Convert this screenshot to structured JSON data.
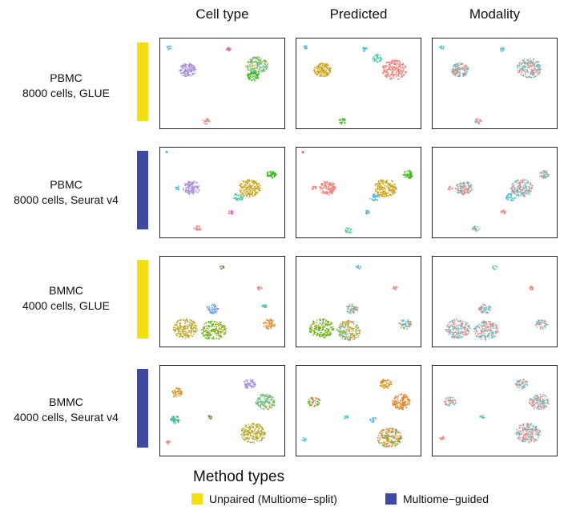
{
  "columns": [
    "Cell type",
    "Predicted",
    "Modality"
  ],
  "rows": [
    {
      "line1": "PBMC",
      "line2": "8000 cells, GLUE",
      "method": "unpaired"
    },
    {
      "line1": "PBMC",
      "line2": "8000 cells, Seurat v4",
      "method": "guided"
    },
    {
      "line1": "BMMC",
      "line2": "4000 cells, GLUE",
      "method": "unpaired"
    },
    {
      "line1": "BMMC",
      "line2": "4000 cells, Seurat v4",
      "method": "guided"
    }
  ],
  "legend": {
    "title": "Method types",
    "items": [
      {
        "key": "unpaired",
        "label": "Unpaired (Multiome−split)",
        "color": "#f2df0f"
      },
      {
        "key": "guided",
        "label": "Multiome−guided",
        "color": "#3f48a3"
      }
    ]
  },
  "colors": {
    "purple": "#a78fdb",
    "teal": "#4ec9a6",
    "green": "#3fb519",
    "olive": "#b6a82e",
    "gold": "#c9a21a",
    "salmon": "#f1827a",
    "pink": "#e05db0",
    "sky": "#4fb5e0",
    "orange": "#e5862b",
    "cyan": "#5ecbcf",
    "modality_a": "#f0847c",
    "modality_b": "#58c5cc"
  },
  "chart_data": {
    "type": "scatter",
    "description_axes": "UMAP embeddings, no axes shown",
    "panels": [
      {
        "row": 0,
        "col": 0,
        "clusters": [
          {
            "x": 0.22,
            "y": 0.35,
            "r": 0.07,
            "n": 140,
            "colors": [
              "purple"
            ]
          },
          {
            "x": 0.78,
            "y": 0.3,
            "r": 0.09,
            "n": 170,
            "colors": [
              "teal",
              "olive"
            ]
          },
          {
            "x": 0.75,
            "y": 0.42,
            "r": 0.05,
            "n": 60,
            "colors": [
              "green"
            ]
          },
          {
            "x": 0.07,
            "y": 0.1,
            "r": 0.02,
            "n": 12,
            "colors": [
              "sky"
            ]
          },
          {
            "x": 0.55,
            "y": 0.12,
            "r": 0.02,
            "n": 14,
            "colors": [
              "pink"
            ]
          },
          {
            "x": 0.37,
            "y": 0.92,
            "r": 0.03,
            "n": 20,
            "colors": [
              "salmon"
            ]
          }
        ]
      },
      {
        "row": 0,
        "col": 1,
        "clusters": [
          {
            "x": 0.21,
            "y": 0.35,
            "r": 0.07,
            "n": 140,
            "colors": [
              "gold"
            ]
          },
          {
            "x": 0.79,
            "y": 0.35,
            "r": 0.1,
            "n": 200,
            "colors": [
              "salmon"
            ]
          },
          {
            "x": 0.65,
            "y": 0.22,
            "r": 0.04,
            "n": 40,
            "colors": [
              "teal"
            ]
          },
          {
            "x": 0.07,
            "y": 0.1,
            "r": 0.02,
            "n": 12,
            "colors": [
              "sky"
            ]
          },
          {
            "x": 0.55,
            "y": 0.12,
            "r": 0.02,
            "n": 14,
            "colors": [
              "sky"
            ]
          },
          {
            "x": 0.37,
            "y": 0.92,
            "r": 0.03,
            "n": 20,
            "colors": [
              "green"
            ]
          }
        ]
      },
      {
        "row": 0,
        "col": 2,
        "clusters": [
          {
            "x": 0.22,
            "y": 0.35,
            "r": 0.07,
            "n": 140,
            "colors": [
              "modality_a",
              "modality_b"
            ]
          },
          {
            "x": 0.78,
            "y": 0.33,
            "r": 0.1,
            "n": 200,
            "colors": [
              "modality_a",
              "modality_b"
            ]
          },
          {
            "x": 0.07,
            "y": 0.1,
            "r": 0.02,
            "n": 12,
            "colors": [
              "modality_b"
            ]
          },
          {
            "x": 0.56,
            "y": 0.12,
            "r": 0.02,
            "n": 14,
            "colors": [
              "modality_b"
            ]
          },
          {
            "x": 0.37,
            "y": 0.92,
            "r": 0.03,
            "n": 20,
            "colors": [
              "modality_b",
              "modality_a"
            ]
          }
        ]
      },
      {
        "row": 1,
        "col": 0,
        "clusters": [
          {
            "x": 0.25,
            "y": 0.45,
            "r": 0.07,
            "n": 120,
            "colors": [
              "purple"
            ]
          },
          {
            "x": 0.72,
            "y": 0.45,
            "r": 0.09,
            "n": 170,
            "colors": [
              "gold"
            ]
          },
          {
            "x": 0.9,
            "y": 0.3,
            "r": 0.04,
            "n": 50,
            "colors": [
              "green"
            ]
          },
          {
            "x": 0.63,
            "y": 0.55,
            "r": 0.04,
            "n": 40,
            "colors": [
              "teal"
            ]
          },
          {
            "x": 0.14,
            "y": 0.45,
            "r": 0.02,
            "n": 12,
            "colors": [
              "sky"
            ]
          },
          {
            "x": 0.57,
            "y": 0.72,
            "r": 0.02,
            "n": 14,
            "colors": [
              "pink"
            ]
          },
          {
            "x": 0.3,
            "y": 0.9,
            "r": 0.03,
            "n": 20,
            "colors": [
              "salmon"
            ]
          },
          {
            "x": 0.05,
            "y": 0.05,
            "r": 0.01,
            "n": 6,
            "colors": [
              "sky"
            ]
          }
        ]
      },
      {
        "row": 1,
        "col": 1,
        "clusters": [
          {
            "x": 0.25,
            "y": 0.45,
            "r": 0.07,
            "n": 120,
            "colors": [
              "salmon"
            ]
          },
          {
            "x": 0.72,
            "y": 0.45,
            "r": 0.09,
            "n": 170,
            "colors": [
              "gold"
            ]
          },
          {
            "x": 0.9,
            "y": 0.3,
            "r": 0.04,
            "n": 50,
            "colors": [
              "green"
            ]
          },
          {
            "x": 0.63,
            "y": 0.55,
            "r": 0.04,
            "n": 40,
            "colors": [
              "sky"
            ]
          },
          {
            "x": 0.14,
            "y": 0.45,
            "r": 0.02,
            "n": 12,
            "colors": [
              "salmon"
            ]
          },
          {
            "x": 0.57,
            "y": 0.72,
            "r": 0.02,
            "n": 14,
            "colors": [
              "sky"
            ]
          },
          {
            "x": 0.42,
            "y": 0.92,
            "r": 0.03,
            "n": 22,
            "colors": [
              "teal"
            ]
          },
          {
            "x": 0.05,
            "y": 0.05,
            "r": 0.01,
            "n": 6,
            "colors": [
              "pink"
            ]
          }
        ]
      },
      {
        "row": 1,
        "col": 2,
        "clusters": [
          {
            "x": 0.25,
            "y": 0.45,
            "r": 0.07,
            "n": 120,
            "colors": [
              "modality_a",
              "modality_b"
            ]
          },
          {
            "x": 0.72,
            "y": 0.45,
            "r": 0.09,
            "n": 170,
            "colors": [
              "modality_a",
              "modality_b"
            ]
          },
          {
            "x": 0.9,
            "y": 0.3,
            "r": 0.04,
            "n": 50,
            "colors": [
              "modality_b",
              "modality_a"
            ]
          },
          {
            "x": 0.63,
            "y": 0.55,
            "r": 0.04,
            "n": 40,
            "colors": [
              "modality_b"
            ]
          },
          {
            "x": 0.14,
            "y": 0.45,
            "r": 0.02,
            "n": 12,
            "colors": [
              "modality_a"
            ]
          },
          {
            "x": 0.57,
            "y": 0.72,
            "r": 0.02,
            "n": 14,
            "colors": [
              "modality_a"
            ]
          },
          {
            "x": 0.35,
            "y": 0.9,
            "r": 0.03,
            "n": 20,
            "colors": [
              "modality_a",
              "modality_b"
            ]
          }
        ]
      },
      {
        "row": 2,
        "col": 0,
        "clusters": [
          {
            "x": 0.2,
            "y": 0.8,
            "r": 0.1,
            "n": 180,
            "colors": [
              "olive",
              "gold"
            ]
          },
          {
            "x": 0.43,
            "y": 0.82,
            "r": 0.1,
            "n": 180,
            "colors": [
              "olive",
              "green"
            ]
          },
          {
            "x": 0.42,
            "y": 0.58,
            "r": 0.05,
            "n": 60,
            "colors": [
              "purple",
              "sky"
            ]
          },
          {
            "x": 0.88,
            "y": 0.75,
            "r": 0.05,
            "n": 50,
            "colors": [
              "orange"
            ]
          },
          {
            "x": 0.5,
            "y": 0.12,
            "r": 0.02,
            "n": 12,
            "colors": [
              "green",
              "pink"
            ]
          },
          {
            "x": 0.8,
            "y": 0.35,
            "r": 0.02,
            "n": 14,
            "colors": [
              "salmon"
            ]
          },
          {
            "x": 0.84,
            "y": 0.55,
            "r": 0.02,
            "n": 14,
            "colors": [
              "teal"
            ]
          }
        ]
      },
      {
        "row": 2,
        "col": 1,
        "clusters": [
          {
            "x": 0.2,
            "y": 0.8,
            "r": 0.1,
            "n": 180,
            "colors": [
              "olive",
              "green"
            ]
          },
          {
            "x": 0.42,
            "y": 0.82,
            "r": 0.1,
            "n": 180,
            "colors": [
              "olive",
              "orange",
              "teal"
            ]
          },
          {
            "x": 0.45,
            "y": 0.58,
            "r": 0.05,
            "n": 60,
            "colors": [
              "salmon",
              "teal"
            ]
          },
          {
            "x": 0.88,
            "y": 0.75,
            "r": 0.05,
            "n": 50,
            "colors": [
              "orange",
              "sky"
            ]
          },
          {
            "x": 0.5,
            "y": 0.12,
            "r": 0.02,
            "n": 12,
            "colors": [
              "sky"
            ]
          },
          {
            "x": 0.8,
            "y": 0.35,
            "r": 0.02,
            "n": 14,
            "colors": [
              "salmon"
            ]
          }
        ]
      },
      {
        "row": 2,
        "col": 2,
        "clusters": [
          {
            "x": 0.2,
            "y": 0.8,
            "r": 0.1,
            "n": 180,
            "colors": [
              "modality_a",
              "modality_b"
            ]
          },
          {
            "x": 0.43,
            "y": 0.82,
            "r": 0.1,
            "n": 180,
            "colors": [
              "modality_a",
              "modality_b"
            ]
          },
          {
            "x": 0.42,
            "y": 0.58,
            "r": 0.05,
            "n": 60,
            "colors": [
              "modality_b",
              "modality_a"
            ]
          },
          {
            "x": 0.88,
            "y": 0.75,
            "r": 0.05,
            "n": 50,
            "colors": [
              "modality_b",
              "modality_a"
            ]
          },
          {
            "x": 0.5,
            "y": 0.12,
            "r": 0.02,
            "n": 12,
            "colors": [
              "modality_b"
            ]
          },
          {
            "x": 0.8,
            "y": 0.35,
            "r": 0.02,
            "n": 14,
            "colors": [
              "modality_a"
            ]
          }
        ]
      },
      {
        "row": 3,
        "col": 0,
        "clusters": [
          {
            "x": 0.75,
            "y": 0.75,
            "r": 0.1,
            "n": 200,
            "colors": [
              "olive"
            ]
          },
          {
            "x": 0.85,
            "y": 0.4,
            "r": 0.08,
            "n": 140,
            "colors": [
              "olive",
              "teal"
            ]
          },
          {
            "x": 0.72,
            "y": 0.2,
            "r": 0.05,
            "n": 60,
            "colors": [
              "purple"
            ]
          },
          {
            "x": 0.13,
            "y": 0.3,
            "r": 0.05,
            "n": 50,
            "colors": [
              "orange",
              "olive"
            ]
          },
          {
            "x": 0.12,
            "y": 0.6,
            "r": 0.04,
            "n": 40,
            "colors": [
              "green",
              "sky"
            ]
          },
          {
            "x": 0.06,
            "y": 0.85,
            "r": 0.02,
            "n": 15,
            "colors": [
              "salmon"
            ]
          },
          {
            "x": 0.4,
            "y": 0.57,
            "r": 0.02,
            "n": 14,
            "colors": [
              "green",
              "pink"
            ]
          }
        ]
      },
      {
        "row": 3,
        "col": 1,
        "clusters": [
          {
            "x": 0.75,
            "y": 0.8,
            "r": 0.1,
            "n": 200,
            "colors": [
              "salmon",
              "gold",
              "green"
            ]
          },
          {
            "x": 0.85,
            "y": 0.4,
            "r": 0.08,
            "n": 140,
            "colors": [
              "orange"
            ]
          },
          {
            "x": 0.72,
            "y": 0.2,
            "r": 0.05,
            "n": 60,
            "colors": [
              "gold",
              "orange"
            ]
          },
          {
            "x": 0.14,
            "y": 0.4,
            "r": 0.05,
            "n": 50,
            "colors": [
              "green",
              "orange",
              "salmon"
            ]
          },
          {
            "x": 0.06,
            "y": 0.82,
            "r": 0.02,
            "n": 15,
            "colors": [
              "cyan"
            ]
          },
          {
            "x": 0.4,
            "y": 0.57,
            "r": 0.02,
            "n": 14,
            "colors": [
              "cyan"
            ]
          },
          {
            "x": 0.62,
            "y": 0.6,
            "r": 0.03,
            "n": 20,
            "colors": [
              "sky"
            ]
          }
        ]
      },
      {
        "row": 3,
        "col": 2,
        "clusters": [
          {
            "x": 0.77,
            "y": 0.75,
            "r": 0.1,
            "n": 200,
            "colors": [
              "modality_a",
              "modality_b"
            ]
          },
          {
            "x": 0.86,
            "y": 0.4,
            "r": 0.08,
            "n": 140,
            "colors": [
              "modality_a",
              "modality_b"
            ]
          },
          {
            "x": 0.72,
            "y": 0.2,
            "r": 0.05,
            "n": 60,
            "colors": [
              "modality_a",
              "modality_b"
            ]
          },
          {
            "x": 0.14,
            "y": 0.4,
            "r": 0.05,
            "n": 50,
            "colors": [
              "modality_a",
              "modality_b"
            ]
          },
          {
            "x": 0.07,
            "y": 0.8,
            "r": 0.02,
            "n": 15,
            "colors": [
              "modality_a"
            ]
          },
          {
            "x": 0.4,
            "y": 0.57,
            "r": 0.02,
            "n": 14,
            "colors": [
              "modality_b"
            ]
          }
        ]
      }
    ]
  }
}
